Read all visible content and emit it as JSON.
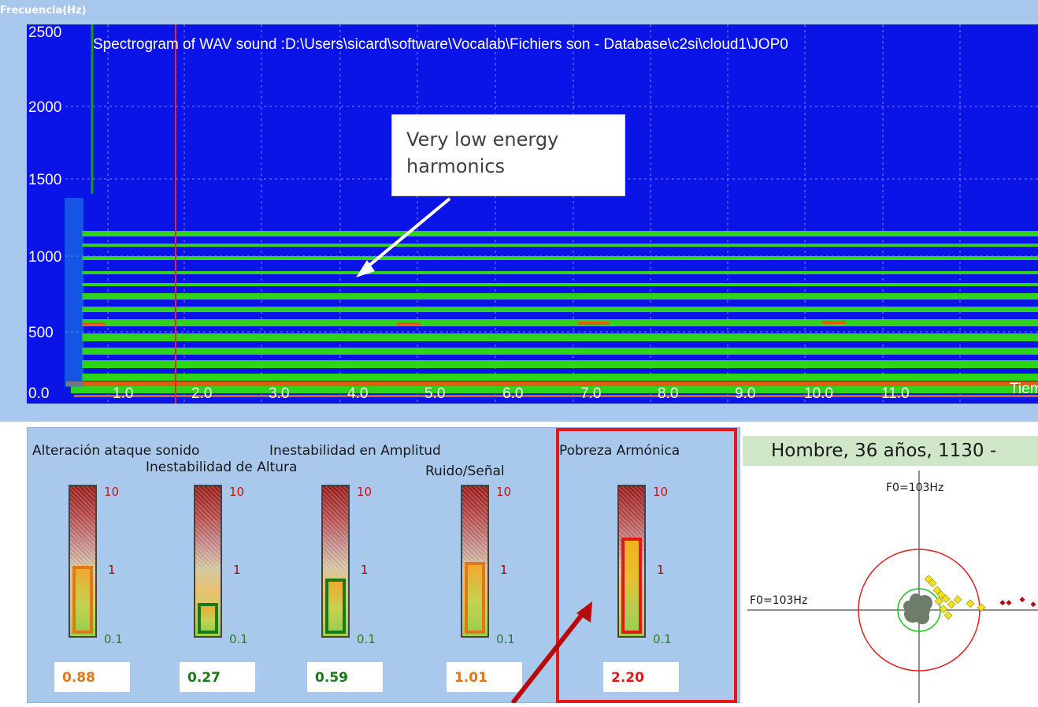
{
  "spectrogram": {
    "y_axis_label": "Frecuencia(Hz)",
    "title": "Spectrogram of WAV sound :D:\\Users\\sicard\\software\\Vocalab\\Fichiers son - Database\\c2si\\cloud1\\JOP0",
    "y_ticks": [
      "2500",
      "2000",
      "1500",
      "1000",
      "500",
      "0.0"
    ],
    "x_ticks": [
      "1.0",
      "2.0",
      "3.0",
      "4.0",
      "5.0",
      "6.0",
      "7.0",
      "8.0",
      "9.0",
      "10.0",
      "11.0"
    ],
    "x_axis_label": "Tiem",
    "annotation": "Very low energy harmonics",
    "colors": {
      "background": "#0a14e6",
      "band": "#34d61c",
      "strong": "#e0620f",
      "cursor": "#ff2020"
    }
  },
  "indicators": [
    {
      "label": "Alteración ataque sonido",
      "value": "0.88",
      "level": 0.88,
      "color": "#e07818"
    },
    {
      "label": "Inestabilidad de Altura",
      "value": "0.27",
      "level": 0.27,
      "color": "#1a7a1a"
    },
    {
      "label": "Inestabilidad en Amplitud",
      "value": "0.59",
      "level": 0.59,
      "color": "#1a7a1a"
    },
    {
      "label": "Ruido/Señal",
      "value": "1.01",
      "level": 1.01,
      "color": "#e07818"
    },
    {
      "label": "Pobreza Armónica",
      "value": "2.20",
      "level": 2.2,
      "color": "#e41818"
    }
  ],
  "gauge_scale": {
    "max": "10",
    "mid": "1",
    "min": "0.1"
  },
  "scatter": {
    "title": "Hombre, 36 años, 1130 -",
    "x_label": "F0=103Hz",
    "y_label": "F0=103Hz"
  }
}
